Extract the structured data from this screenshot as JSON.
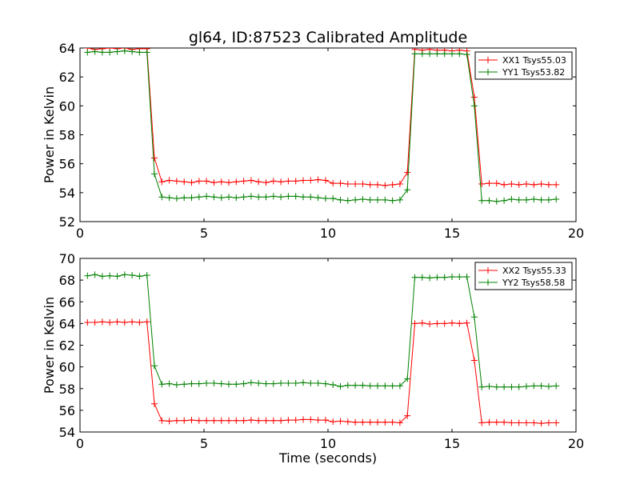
{
  "figure": {
    "title": "gl64, ID:87523 Calibrated Amplitude"
  },
  "chart_data": [
    {
      "type": "line",
      "title": "gl64, ID:87523 Calibrated Amplitude",
      "xlabel": "",
      "ylabel": "Power in Kelvin",
      "xlim": [
        0,
        20
      ],
      "ylim": [
        52,
        64
      ],
      "xticks": [
        "0",
        "5",
        "10",
        "15",
        "20"
      ],
      "yticks": [
        "52",
        "54",
        "56",
        "58",
        "60",
        "62",
        "64"
      ],
      "grid": false,
      "legend_position": "top-right",
      "x": [
        0.3,
        0.6,
        0.9,
        1.2,
        1.5,
        1.8,
        2.1,
        2.4,
        2.7,
        3.0,
        3.3,
        3.6,
        3.9,
        4.2,
        4.5,
        4.8,
        5.1,
        5.4,
        5.7,
        6.0,
        6.3,
        6.6,
        6.9,
        7.2,
        7.5,
        7.8,
        8.1,
        8.4,
        8.7,
        9.0,
        9.3,
        9.6,
        9.9,
        10.2,
        10.5,
        10.8,
        11.1,
        11.4,
        11.7,
        12.0,
        12.3,
        12.6,
        12.9,
        13.2,
        13.5,
        13.8,
        14.1,
        14.4,
        14.7,
        15.0,
        15.3,
        15.6,
        15.9,
        16.2,
        16.5,
        16.8,
        17.1,
        17.4,
        17.7,
        18.0,
        18.3,
        18.6,
        18.9,
        19.2
      ],
      "series": [
        {
          "name": "XX1 Tsys55.03",
          "color": "#ff0000",
          "values": [
            64.0,
            63.9,
            63.95,
            64.0,
            63.95,
            64.0,
            63.9,
            63.95,
            63.95,
            56.4,
            54.75,
            54.85,
            54.8,
            54.75,
            54.7,
            54.8,
            54.8,
            54.7,
            54.75,
            54.7,
            54.75,
            54.8,
            54.85,
            54.75,
            54.7,
            54.8,
            54.75,
            54.8,
            54.8,
            54.85,
            54.85,
            54.9,
            54.85,
            54.65,
            54.65,
            54.6,
            54.6,
            54.6,
            54.55,
            54.55,
            54.5,
            54.55,
            54.6,
            55.4,
            63.9,
            63.85,
            63.9,
            63.85,
            63.85,
            63.8,
            63.85,
            63.8,
            60.6,
            54.6,
            54.65,
            54.65,
            54.55,
            54.6,
            54.55,
            54.6,
            54.55,
            54.6,
            54.55,
            54.55
          ]
        },
        {
          "name": "YY1 Tsys53.82",
          "color": "#008000",
          "values": [
            63.7,
            63.75,
            63.7,
            63.7,
            63.75,
            63.8,
            63.75,
            63.7,
            63.7,
            55.3,
            53.7,
            53.65,
            53.6,
            53.65,
            53.65,
            53.7,
            53.75,
            53.7,
            53.65,
            53.7,
            53.65,
            53.7,
            53.75,
            53.7,
            53.7,
            53.75,
            53.7,
            53.75,
            53.75,
            53.7,
            53.7,
            53.65,
            53.6,
            53.6,
            53.5,
            53.45,
            53.5,
            53.55,
            53.5,
            53.5,
            53.5,
            53.45,
            53.5,
            54.2,
            63.6,
            63.6,
            63.6,
            63.6,
            63.6,
            63.6,
            63.6,
            63.55,
            60.0,
            53.45,
            53.45,
            53.4,
            53.45,
            53.55,
            53.5,
            53.5,
            53.55,
            53.5,
            53.5,
            53.55
          ]
        }
      ]
    },
    {
      "type": "line",
      "title": "",
      "xlabel": "Time (seconds)",
      "ylabel": "Power in Kelvin",
      "xlim": [
        0,
        20
      ],
      "ylim": [
        54,
        70
      ],
      "xticks": [
        "0",
        "5",
        "10",
        "15",
        "20"
      ],
      "yticks": [
        "54",
        "56",
        "58",
        "60",
        "62",
        "64",
        "66",
        "68",
        "70"
      ],
      "grid": false,
      "legend_position": "top-right",
      "x": [
        0.3,
        0.6,
        0.9,
        1.2,
        1.5,
        1.8,
        2.1,
        2.4,
        2.7,
        3.0,
        3.3,
        3.6,
        3.9,
        4.2,
        4.5,
        4.8,
        5.1,
        5.4,
        5.7,
        6.0,
        6.3,
        6.6,
        6.9,
        7.2,
        7.5,
        7.8,
        8.1,
        8.4,
        8.7,
        9.0,
        9.3,
        9.6,
        9.9,
        10.2,
        10.5,
        10.8,
        11.1,
        11.4,
        11.7,
        12.0,
        12.3,
        12.6,
        12.9,
        13.2,
        13.5,
        13.8,
        14.1,
        14.4,
        14.7,
        15.0,
        15.3,
        15.6,
        15.9,
        16.2,
        16.5,
        16.8,
        17.1,
        17.4,
        17.7,
        18.0,
        18.3,
        18.6,
        18.9,
        19.2
      ],
      "series": [
        {
          "name": "XX2 Tsys55.33",
          "color": "#ff0000",
          "values": [
            64.1,
            64.1,
            64.15,
            64.1,
            64.15,
            64.1,
            64.15,
            64.1,
            64.15,
            56.6,
            55.05,
            55.0,
            55.05,
            55.05,
            55.1,
            55.05,
            55.05,
            55.05,
            55.05,
            55.05,
            55.05,
            55.05,
            55.1,
            55.05,
            55.05,
            55.05,
            55.05,
            55.1,
            55.1,
            55.15,
            55.15,
            55.1,
            55.1,
            54.95,
            55.0,
            54.95,
            54.9,
            54.9,
            54.9,
            54.9,
            54.9,
            54.9,
            54.85,
            55.5,
            64.0,
            64.05,
            63.95,
            64.0,
            64.0,
            64.05,
            64.0,
            64.05,
            60.6,
            54.85,
            54.9,
            54.9,
            54.9,
            54.85,
            54.85,
            54.85,
            54.85,
            54.8,
            54.85,
            54.85
          ]
        },
        {
          "name": "YY2 Tsys58.58",
          "color": "#008000",
          "values": [
            68.4,
            68.5,
            68.35,
            68.4,
            68.35,
            68.5,
            68.45,
            68.35,
            68.45,
            60.1,
            58.4,
            58.45,
            58.35,
            58.4,
            58.45,
            58.45,
            58.5,
            58.5,
            58.45,
            58.4,
            58.4,
            58.45,
            58.55,
            58.5,
            58.45,
            58.45,
            58.5,
            58.5,
            58.5,
            58.55,
            58.5,
            58.5,
            58.45,
            58.35,
            58.2,
            58.3,
            58.3,
            58.3,
            58.25,
            58.25,
            58.25,
            58.25,
            58.25,
            58.9,
            68.25,
            68.25,
            68.2,
            68.25,
            68.25,
            68.3,
            68.3,
            68.3,
            64.6,
            58.15,
            58.2,
            58.15,
            58.15,
            58.15,
            58.15,
            58.2,
            58.25,
            58.25,
            58.2,
            58.25
          ]
        }
      ]
    }
  ]
}
